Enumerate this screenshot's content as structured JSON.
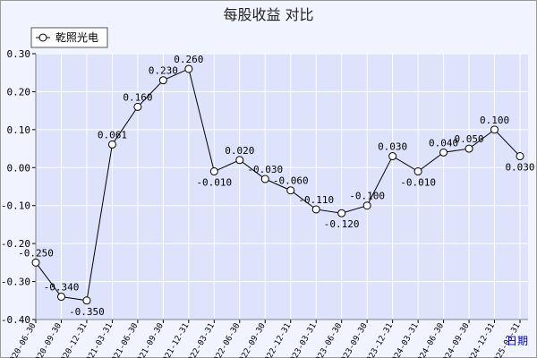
{
  "chart_data": {
    "type": "line",
    "title": "每股收益  对比",
    "xlabel": "日期",
    "ylabel": "",
    "ylim": [
      -0.4,
      0.3
    ],
    "yticks": [
      "0.30",
      "0.20",
      "0.10",
      "0.00",
      "-0.10",
      "-0.20",
      "-0.30",
      "-0.40"
    ],
    "grid": true,
    "legend_position": "top-left",
    "x": [
      "2020-06-30",
      "2020-09-30",
      "2020-12-31",
      "2021-03-31",
      "2021-06-30",
      "2021-09-30",
      "2021-12-31",
      "2022-03-31",
      "2022-06-30",
      "2022-09-30",
      "2022-12-31",
      "2023-03-31",
      "2023-06-30",
      "2023-09-30",
      "2023-12-31",
      "2024-03-31",
      "2024-06-30",
      "2024-09-30",
      "2024-12-31",
      "2025-03-31"
    ],
    "series": [
      {
        "name": "乾照光电",
        "values": [
          -0.25,
          -0.34,
          -0.35,
          0.061,
          0.16,
          0.23,
          0.26,
          -0.01,
          0.02,
          -0.03,
          -0.06,
          -0.11,
          -0.12,
          -0.1,
          0.03,
          -0.01,
          0.04,
          0.05,
          0.1,
          0.03
        ],
        "labels": [
          "-0.250",
          "-0.340",
          "-0.350",
          "0.061",
          "0.160",
          "0.230",
          "0.260",
          "-0.010",
          "0.020",
          "-0.030",
          "-0.060",
          "-0.110",
          "-0.120",
          "-0.100",
          "0.030",
          "-0.010",
          "0.040",
          "0.050",
          "0.100",
          "0.030"
        ]
      }
    ],
    "colors": {
      "line": "#000000",
      "marker_fill": "#ffffff",
      "plot_bg": "#dde3fb",
      "grid": "#ffffff",
      "frame_bg": "#f1f3ff"
    }
  }
}
